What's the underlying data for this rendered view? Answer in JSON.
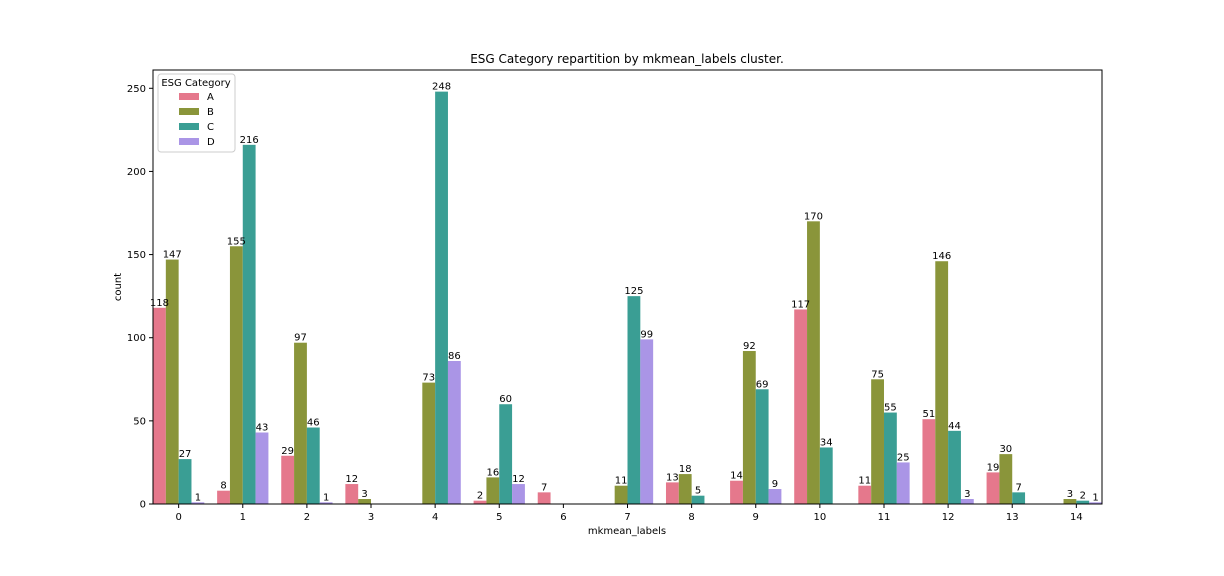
{
  "chart_data": {
    "type": "bar",
    "title": "ESG Category repartition by mkmean_labels cluster.",
    "xlabel": "mkmean_labels",
    "ylabel": "count",
    "categories": [
      "0",
      "1",
      "2",
      "3",
      "4",
      "5",
      "6",
      "7",
      "8",
      "9",
      "10",
      "11",
      "12",
      "13",
      "14"
    ],
    "ylim": [
      0,
      261
    ],
    "yticks": [
      0,
      50,
      100,
      150,
      200,
      250
    ],
    "grid": false,
    "legend": {
      "title": "ESG Category",
      "placement": "top-left"
    },
    "series": [
      {
        "name": "A",
        "color": "#e5788c",
        "values": [
          118,
          8,
          29,
          12,
          null,
          2,
          7,
          null,
          13,
          14,
          117,
          11,
          51,
          19,
          null
        ]
      },
      {
        "name": "B",
        "color": "#8a953a",
        "values": [
          147,
          155,
          97,
          3,
          73,
          16,
          null,
          11,
          18,
          92,
          170,
          75,
          146,
          30,
          3
        ]
      },
      {
        "name": "C",
        "color": "#3a9e94",
        "values": [
          27,
          216,
          46,
          null,
          248,
          60,
          null,
          125,
          5,
          69,
          34,
          55,
          44,
          7,
          2
        ]
      },
      {
        "name": "D",
        "color": "#aa95e6",
        "values": [
          1,
          43,
          1,
          null,
          86,
          12,
          null,
          99,
          null,
          9,
          null,
          25,
          3,
          null,
          1
        ]
      }
    ]
  }
}
